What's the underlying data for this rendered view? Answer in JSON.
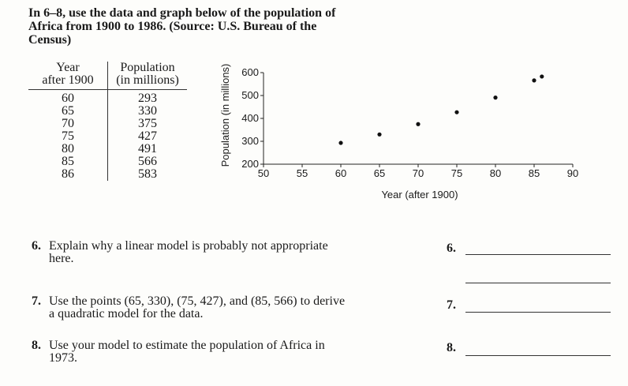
{
  "intro": "In 6–8, use the data and graph below of the population of Africa from 1900 to 1986. (Source: U.S. Bureau of the Census)",
  "table": {
    "col1_header_line1": "Year",
    "col1_header_line2": "after 1900",
    "col2_header_line1": "Population",
    "col2_header_line2": "(in millions)",
    "rows": [
      [
        "60",
        "293"
      ],
      [
        "65",
        "330"
      ],
      [
        "70",
        "375"
      ],
      [
        "75",
        "427"
      ],
      [
        "80",
        "491"
      ],
      [
        "85",
        "566"
      ],
      [
        "86",
        "583"
      ]
    ]
  },
  "chart_data": {
    "type": "scatter",
    "x": [
      60,
      65,
      70,
      75,
      80,
      85,
      86
    ],
    "y": [
      293,
      330,
      375,
      427,
      491,
      566,
      583
    ],
    "xlabel": "Year (after 1900)",
    "ylabel": "Population (in millions)",
    "xlim": [
      50,
      90
    ],
    "ylim": [
      200,
      600
    ],
    "xticks": [
      50,
      55,
      60,
      65,
      70,
      75,
      80,
      85,
      90
    ],
    "yticks": [
      200,
      300,
      400,
      500,
      600
    ],
    "grid": false
  },
  "questions": [
    {
      "num": "6.",
      "text": "Explain why a linear model is probably not appropriate here.",
      "answer_label": "6."
    },
    {
      "num": "7.",
      "text": "Use the points (65, 330), (75, 427), and (85, 566) to derive a quadratic model for the data.",
      "answer_label": "7."
    },
    {
      "num": "8.",
      "text": "Use your model to estimate the population of Africa in 1973.",
      "answer_label": "8."
    }
  ]
}
